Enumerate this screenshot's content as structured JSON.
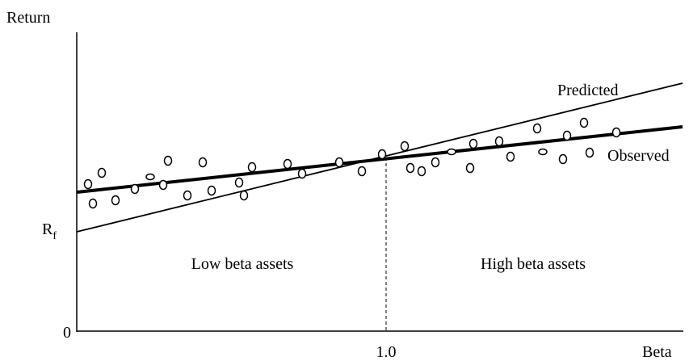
{
  "axes": {
    "y_label": "Return",
    "x_label": "Beta",
    "origin_label": "0",
    "x_mark_label": "1.0",
    "rf_label": "R",
    "rf_subscript": "f"
  },
  "lines": {
    "predicted": "Predicted",
    "observed": "Observed"
  },
  "regions": {
    "low": "Low beta assets",
    "high": "High beta assets"
  }
}
